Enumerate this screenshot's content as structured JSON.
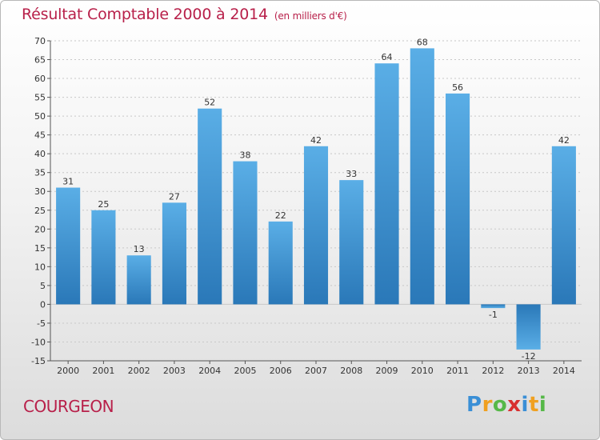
{
  "chart_data": {
    "type": "bar",
    "title": "Résultat Comptable 2000 à 2014",
    "subtitle": "(en milliers d'€)",
    "categories": [
      "2000",
      "2001",
      "2002",
      "2003",
      "2004",
      "2005",
      "2006",
      "2007",
      "2008",
      "2009",
      "2010",
      "2011",
      "2012",
      "2013",
      "2014"
    ],
    "values": [
      31,
      25,
      13,
      27,
      52,
      38,
      22,
      42,
      33,
      64,
      68,
      56,
      -1,
      -12,
      42
    ],
    "ylim": [
      -15,
      70
    ],
    "yticks": [
      -15,
      -10,
      -5,
      0,
      5,
      10,
      15,
      20,
      25,
      30,
      35,
      40,
      45,
      50,
      55,
      60,
      65,
      70
    ],
    "xlabel": "",
    "ylabel": "",
    "grid": true,
    "bar_color": "#3f96d8"
  },
  "location": "COURGEON",
  "logo": {
    "p": "P",
    "r": "r",
    "o": "o",
    "x": "x",
    "i1": "i",
    "t": "t",
    "i2": "i"
  }
}
